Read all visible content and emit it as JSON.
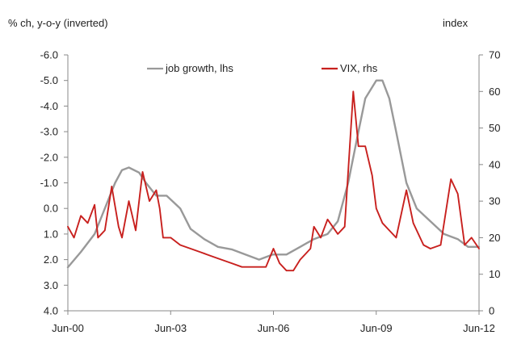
{
  "chart_data": {
    "type": "line",
    "left_axis_title": "% ch, y-o-y (inverted)",
    "right_axis_title": "index",
    "left_axis": {
      "min": -6.0,
      "max": 4.0,
      "inverted": true,
      "ticks": [
        -6,
        -5,
        -4,
        -3,
        -2,
        -1,
        0,
        1,
        2,
        3,
        4
      ],
      "tick_labels": [
        "-6.0",
        "-5.0",
        "-4.0",
        "-3.0",
        "-2.0",
        "-1.0",
        "0.0",
        "1.0",
        "2.0",
        "3.0",
        "4.0"
      ]
    },
    "right_axis": {
      "min": 0,
      "max": 70,
      "ticks": [
        0,
        10,
        20,
        30,
        40,
        50,
        60,
        70
      ],
      "tick_labels": [
        "0",
        "10",
        "20",
        "30",
        "40",
        "50",
        "60",
        "70"
      ]
    },
    "x_axis": {
      "min": 2000.42,
      "max": 2012.42,
      "ticks": [
        2000.42,
        2003.42,
        2006.42,
        2009.42,
        2012.42
      ],
      "tick_labels": [
        "Jun-00",
        "Jun-03",
        "Jun-06",
        "Jun-09",
        "Jun-12"
      ]
    },
    "legend": "top-center",
    "grid": false,
    "series": [
      {
        "name": "job growth, lhs",
        "axis": "left",
        "color": "#999999",
        "points": [
          [
            2000.42,
            2.3
          ],
          [
            2000.8,
            1.7
          ],
          [
            2001.2,
            1.0
          ],
          [
            2001.5,
            0.0
          ],
          [
            2001.8,
            -1.0
          ],
          [
            2002.0,
            -1.5
          ],
          [
            2002.2,
            -1.6
          ],
          [
            2002.5,
            -1.4
          ],
          [
            2002.7,
            -1.0
          ],
          [
            2003.0,
            -0.5
          ],
          [
            2003.3,
            -0.5
          ],
          [
            2003.7,
            0.0
          ],
          [
            2004.0,
            0.8
          ],
          [
            2004.4,
            1.2
          ],
          [
            2004.8,
            1.5
          ],
          [
            2005.2,
            1.6
          ],
          [
            2005.6,
            1.8
          ],
          [
            2006.0,
            2.0
          ],
          [
            2006.4,
            1.8
          ],
          [
            2006.8,
            1.8
          ],
          [
            2007.2,
            1.5
          ],
          [
            2007.6,
            1.2
          ],
          [
            2008.0,
            1.0
          ],
          [
            2008.3,
            0.5
          ],
          [
            2008.6,
            -1.0
          ],
          [
            2008.9,
            -3.0
          ],
          [
            2009.1,
            -4.3
          ],
          [
            2009.42,
            -5.0
          ],
          [
            2009.6,
            -5.0
          ],
          [
            2009.8,
            -4.3
          ],
          [
            2010.0,
            -3.0
          ],
          [
            2010.3,
            -1.0
          ],
          [
            2010.6,
            0.0
          ],
          [
            2011.0,
            0.5
          ],
          [
            2011.4,
            1.0
          ],
          [
            2011.8,
            1.2
          ],
          [
            2012.1,
            1.5
          ],
          [
            2012.42,
            1.5
          ]
        ]
      },
      {
        "name": "VIX, rhs",
        "axis": "right",
        "color": "#c8201e",
        "points": [
          [
            2000.42,
            23
          ],
          [
            2000.6,
            20
          ],
          [
            2000.8,
            26
          ],
          [
            2001.0,
            24
          ],
          [
            2001.2,
            29
          ],
          [
            2001.3,
            20
          ],
          [
            2001.5,
            22
          ],
          [
            2001.7,
            34
          ],
          [
            2001.9,
            23
          ],
          [
            2002.0,
            20
          ],
          [
            2002.2,
            30
          ],
          [
            2002.4,
            22
          ],
          [
            2002.5,
            30
          ],
          [
            2002.6,
            38
          ],
          [
            2002.8,
            30
          ],
          [
            2003.0,
            33
          ],
          [
            2003.1,
            28
          ],
          [
            2003.2,
            20
          ],
          [
            2003.42,
            20
          ],
          [
            2003.7,
            18
          ],
          [
            2004.0,
            17
          ],
          [
            2004.3,
            16
          ],
          [
            2004.6,
            15
          ],
          [
            2004.9,
            14
          ],
          [
            2005.2,
            13
          ],
          [
            2005.5,
            12
          ],
          [
            2005.8,
            12
          ],
          [
            2006.2,
            12
          ],
          [
            2006.42,
            17
          ],
          [
            2006.6,
            13
          ],
          [
            2006.8,
            11
          ],
          [
            2007.0,
            11
          ],
          [
            2007.2,
            14
          ],
          [
            2007.5,
            17
          ],
          [
            2007.6,
            23
          ],
          [
            2007.8,
            20
          ],
          [
            2008.0,
            25
          ],
          [
            2008.3,
            21
          ],
          [
            2008.5,
            23
          ],
          [
            2008.75,
            60
          ],
          [
            2008.9,
            45
          ],
          [
            2009.1,
            45
          ],
          [
            2009.3,
            37
          ],
          [
            2009.42,
            28
          ],
          [
            2009.6,
            24
          ],
          [
            2009.8,
            22
          ],
          [
            2010.0,
            20
          ],
          [
            2010.3,
            33
          ],
          [
            2010.5,
            24
          ],
          [
            2010.8,
            18
          ],
          [
            2011.0,
            17
          ],
          [
            2011.3,
            18
          ],
          [
            2011.6,
            36
          ],
          [
            2011.8,
            32
          ],
          [
            2012.0,
            18
          ],
          [
            2012.2,
            20
          ],
          [
            2012.42,
            17
          ]
        ]
      }
    ]
  }
}
